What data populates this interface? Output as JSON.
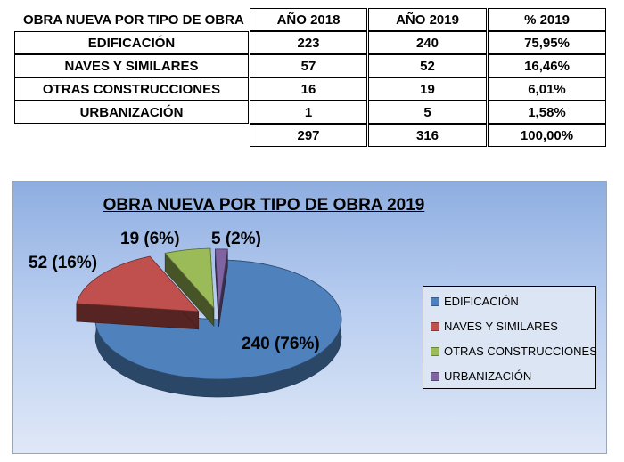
{
  "table": {
    "headers": [
      "OBRA NUEVA POR TIPO DE OBRA",
      "AÑO 2018",
      "AÑO 2019",
      "% 2019"
    ],
    "rows": [
      [
        "EDIFICACIÓN",
        "223",
        "240",
        "75,95%"
      ],
      [
        "NAVES Y SIMILARES",
        "57",
        "52",
        "16,46%"
      ],
      [
        "OTRAS CONSTRUCCIONES",
        "16",
        "19",
        "6,01%"
      ],
      [
        "URBANIZACIÓN",
        "1",
        "5",
        "1,58%"
      ]
    ],
    "totals": [
      "",
      "297",
      "316",
      "100,00%"
    ]
  },
  "chart_data": {
    "type": "pie",
    "title": "OBRA NUEVA POR TIPO DE OBRA 2019",
    "categories": [
      "EDIFICACIÓN",
      "NAVES Y SIMILARES",
      "OTRAS CONSTRUCCIONES",
      "URBANIZACIÓN"
    ],
    "values": [
      240,
      52,
      19,
      5
    ],
    "percent_labels": [
      "240 (76%)",
      "52 (16%)",
      "19 (6%)",
      "5 (2%)"
    ],
    "colors": [
      "#4f81bd",
      "#c0504d",
      "#9bbb59",
      "#8064a2"
    ],
    "three_d": true,
    "exploded": true,
    "legend_position": "right"
  }
}
